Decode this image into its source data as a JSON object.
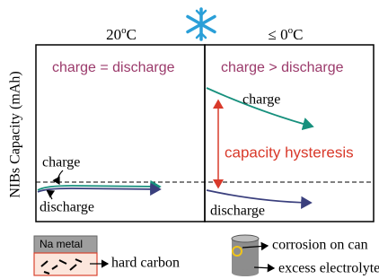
{
  "header": {
    "left_temperature": {
      "value": "20",
      "sup": "o",
      "unit": "C"
    },
    "right_temperature": {
      "value": "≤ 0",
      "sup": "o",
      "unit": "C"
    }
  },
  "y_axis_label": "NIBs Capacity (mAh)",
  "left_panel": {
    "relation": "charge = discharge",
    "charge_label": "charge",
    "discharge_label": "discharge"
  },
  "right_panel": {
    "relation": "charge > discharge",
    "charge_label": "charge",
    "hysteresis_label": "capacity hysteresis",
    "discharge_label": "discharge"
  },
  "legend": {
    "na_metal": "Na metal",
    "hard_carbon": "hard carbon",
    "corrosion": "corrosion on can",
    "electrolyte": "excess electrolyte"
  }
}
